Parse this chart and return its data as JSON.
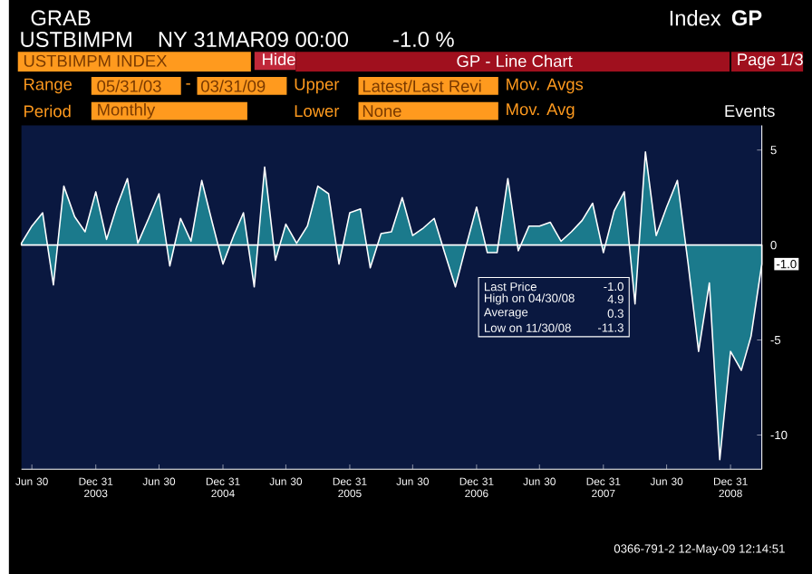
{
  "chart_data": {
    "type": "area",
    "x": [
      "2003-05-31",
      "2003-06-30",
      "2003-07-31",
      "2003-08-31",
      "2003-09-30",
      "2003-10-31",
      "2003-11-30",
      "2003-12-31",
      "2004-01-31",
      "2004-02-29",
      "2004-03-31",
      "2004-04-30",
      "2004-05-31",
      "2004-06-30",
      "2004-07-31",
      "2004-08-31",
      "2004-09-30",
      "2004-10-31",
      "2004-11-30",
      "2004-12-31",
      "2005-01-31",
      "2005-02-28",
      "2005-03-31",
      "2005-04-30",
      "2005-05-31",
      "2005-06-30",
      "2005-07-31",
      "2005-08-31",
      "2005-09-30",
      "2005-10-31",
      "2005-11-30",
      "2005-12-31",
      "2006-01-31",
      "2006-02-28",
      "2006-03-31",
      "2006-04-30",
      "2006-05-31",
      "2006-06-30",
      "2006-07-31",
      "2006-08-31",
      "2006-09-30",
      "2006-10-31",
      "2006-11-30",
      "2006-12-31",
      "2007-01-31",
      "2007-02-28",
      "2007-03-31",
      "2007-04-30",
      "2007-05-31",
      "2007-06-30",
      "2007-07-31",
      "2007-08-31",
      "2007-09-30",
      "2007-10-31",
      "2007-11-30",
      "2007-12-31",
      "2008-01-31",
      "2008-02-29",
      "2008-03-31",
      "2008-04-30",
      "2008-05-31",
      "2008-06-30",
      "2008-07-31",
      "2008-08-31",
      "2008-09-30",
      "2008-10-31",
      "2008-11-30",
      "2008-12-31",
      "2009-01-31",
      "2009-02-28",
      "2009-03-31"
    ],
    "series": [
      {
        "color": "#1b7a8c",
        "values": [
          0.1,
          1.0,
          1.7,
          -2.1,
          3.1,
          1.5,
          0.7,
          2.8,
          0.3,
          2.0,
          3.5,
          0.1,
          1.4,
          2.7,
          -1.1,
          1.4,
          0.2,
          3.4,
          1.2,
          -1.0,
          0.5,
          1.7,
          -2.2,
          4.1,
          -0.8,
          1.1,
          0.1,
          1.0,
          3.1,
          2.7,
          -1.0,
          1.7,
          1.9,
          -1.2,
          0.6,
          0.7,
          2.5,
          0.5,
          0.9,
          1.4,
          -0.4,
          -2.2,
          -0.1,
          2.0,
          -0.4,
          -0.4,
          3.5,
          -0.3,
          1.0,
          1.0,
          1.2,
          0.2,
          0.7,
          1.3,
          2.2,
          -0.4,
          1.8,
          2.8,
          -3.1,
          4.9,
          0.5,
          2.0,
          3.4,
          -1.0,
          -5.6,
          -2.0,
          -11.3,
          -5.6,
          -6.6,
          -4.8,
          -1.0
        ],
        "value_labels": [
          null,
          null,
          null,
          null,
          null,
          null,
          null,
          null,
          null,
          null,
          null,
          null,
          null,
          null,
          null,
          null,
          null,
          null,
          null,
          null,
          null,
          null,
          null,
          null,
          null,
          null,
          null,
          null,
          null,
          null,
          null,
          null,
          null,
          null,
          null,
          null,
          null,
          null,
          null,
          null,
          null,
          null,
          null,
          null,
          null,
          null,
          null,
          null,
          null,
          null,
          null,
          null,
          null,
          null,
          null,
          null,
          null,
          null,
          null,
          null,
          null,
          null,
          null,
          null,
          null,
          null,
          null,
          null,
          null,
          null,
          "-1.0"
        ]
      }
    ],
    "xlim": [
      "2003-05-31",
      "2009-03-31"
    ],
    "xticks": [
      {
        "value": "2003-06-30",
        "label": "Jun 30"
      },
      {
        "value": "2003-12-31",
        "label": "Dec 31 2003"
      },
      {
        "value": "2004-06-30",
        "label": "Jun 30"
      },
      {
        "value": "2004-12-31",
        "label": "Dec 31 2004"
      },
      {
        "value": "2005-06-30",
        "label": "Jun 30"
      },
      {
        "value": "2005-12-31",
        "label": "Dec 31 2005"
      },
      {
        "value": "2006-06-30",
        "label": "Jun 30"
      },
      {
        "value": "2006-12-31",
        "label": "Dec 31 2006"
      },
      {
        "value": "2007-06-30",
        "label": "Jun 30"
      },
      {
        "value": "2007-12-31",
        "label": "Dec 31 2007"
      },
      {
        "value": "2008-06-30",
        "label": "Jun 30"
      },
      {
        "value": "2008-12-31",
        "label": "Dec 31 2008"
      }
    ],
    "ylim": [
      -11.8,
      6.3
    ],
    "yticks": [
      5,
      0,
      -5,
      -10
    ],
    "grid": false,
    "annotations": [
      "GRAB",
      "USTBIMPM",
      "NY 31MAR09 00:00",
      "-1.0 %",
      "Index",
      "GP",
      "USTBIMPM INDEX",
      "Hide",
      "GP - Line Chart",
      "Page 1/3",
      "Range",
      "05/31/03",
      "-",
      "03/31/09",
      "Upper",
      "Latest/Last Revi",
      "Mov. Avgs",
      "Period",
      "Monthly",
      "Lower",
      "None",
      "Mov. Avg",
      "Events",
      "Last Price",
      "-1.0",
      "High on 04/30/08",
      "4.9",
      "Average",
      "0.3",
      "Low on 11/30/08",
      "-11.3",
      "0366-791-2 12-May-09 12:14:51"
    ]
  }
}
